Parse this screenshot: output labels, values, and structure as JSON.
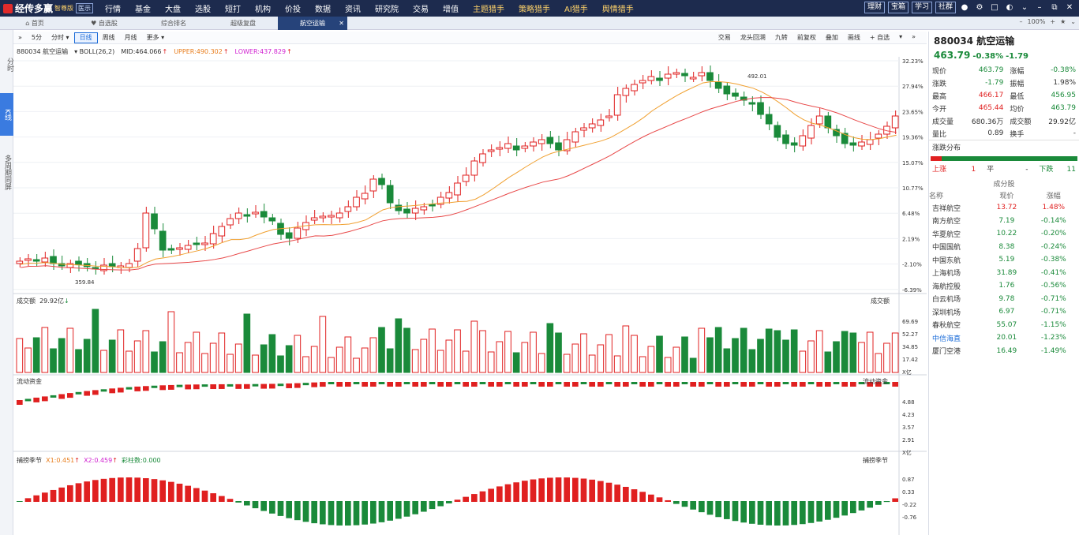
{
  "app": {
    "name": "经传多赢",
    "edition": "智尊版",
    "switch": "医示"
  },
  "nav": [
    "行情",
    "基金",
    "大盘",
    "选股",
    "短打",
    "机构",
    "价投",
    "数据",
    "资讯",
    "研究院",
    "交易",
    "增值",
    "主题猎手",
    "策略猎手",
    "AI猎手",
    "舆情猎手"
  ],
  "top_right": [
    "理财",
    "宝箱",
    "学习",
    "社群"
  ],
  "tabs": [
    "首页",
    "自选股",
    "综合排名",
    "超级复盘",
    "航空运输"
  ],
  "zoom": "100%",
  "left_strip": [
    "分时",
    "K线",
    "多周期同屏"
  ],
  "toolbar": {
    "periods": [
      "5分",
      "分时",
      "日线",
      "周线",
      "月线",
      "更多"
    ],
    "right": [
      "交易",
      "龙头回溯",
      "九转",
      "前复权",
      "叠加",
      "画线",
      "自选"
    ]
  },
  "info": {
    "code": "880034 航空运输",
    "ind": "BOLL(26,2)",
    "mid": "MID:464.066",
    "upper": "UPPER:490.302",
    "lower": "LOWER:437.829"
  },
  "price_axis": [
    "32.23%",
    "27.94%",
    "23.65%",
    "19.36%",
    "15.07%",
    "10.77%",
    "6.48%",
    "2.19%",
    "-2.10%",
    "-6.39%"
  ],
  "hi_label": "492.01",
  "lo_label": "359.84",
  "vol": {
    "title": "成交额",
    "value": "29.92亿",
    "axis": [
      "69.69",
      "52.27",
      "34.85",
      "17.42",
      "X亿"
    ]
  },
  "flow": {
    "title": "流动资金",
    "axis": [
      "4.88",
      "4.23",
      "3.57",
      "2.91",
      "X亿"
    ]
  },
  "ind2": {
    "title": "捕捞季节",
    "x1": "X1:0.451",
    "x2": "X2:0.459",
    "bar": "彩柱数:0.000",
    "axis": [
      "0.87",
      "0.33",
      "-0.22",
      "-0.76"
    ]
  },
  "side": {
    "code": "880034 航空运输",
    "price": "463.79",
    "chg_pct": "-0.38%",
    "chg": "-1.79",
    "quote": [
      [
        "现价",
        "463.79",
        "涨幅",
        "-0.38%"
      ],
      [
        "涨跌",
        "-1.79",
        "振幅",
        "1.98%"
      ],
      [
        "最高",
        "466.17",
        "最低",
        "456.95"
      ],
      [
        "今开",
        "465.44",
        "均价",
        "463.79"
      ],
      [
        "成交量",
        "680.36万",
        "成交额",
        "29.92亿"
      ],
      [
        "量比",
        "0.89",
        "换手",
        "-"
      ]
    ],
    "dist_title": "涨跌分布",
    "dist": {
      "up": "上涨",
      "up_n": "1",
      "flat": "平",
      "flat_n": "-",
      "down": "下跌",
      "down_n": "11"
    },
    "comp_title": "成分股",
    "comp_head": [
      "名称",
      "现价",
      "涨幅"
    ],
    "comp": [
      [
        "吉祥航空",
        "13.72",
        "1.48%"
      ],
      [
        "南方航空",
        "7.19",
        "-0.14%"
      ],
      [
        "华夏航空",
        "10.22",
        "-0.20%"
      ],
      [
        "中国国航",
        "8.38",
        "-0.24%"
      ],
      [
        "中国东航",
        "5.19",
        "-0.38%"
      ],
      [
        "上海机场",
        "31.89",
        "-0.41%"
      ],
      [
        "海航控股",
        "1.76",
        "-0.56%"
      ],
      [
        "白云机场",
        "9.78",
        "-0.71%"
      ],
      [
        "深圳机场",
        "6.97",
        "-0.71%"
      ],
      [
        "春秋航空",
        "55.07",
        "-1.15%"
      ],
      [
        "中信海直",
        "20.01",
        "-1.23%"
      ],
      [
        "厦门空港",
        "16.49",
        "-1.49%"
      ]
    ]
  },
  "colors": {
    "up": "#e02020",
    "down": "#1a8a3a",
    "nav_bg": "#1d2b4e"
  }
}
